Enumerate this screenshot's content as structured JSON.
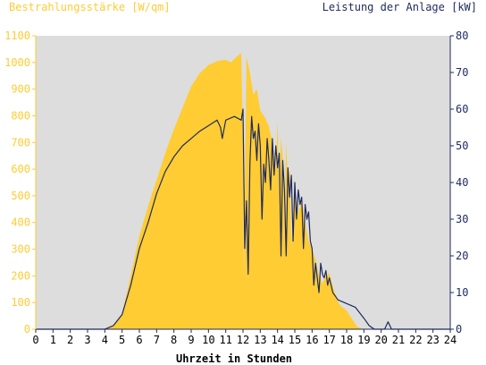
{
  "chart_data": {
    "type": "area",
    "title_left": "Bestrahlungsstärke [W/qm]",
    "title_right": "Leistung der Anlage [kW]",
    "xlabel": "Uhrzeit in Stunden",
    "xlim": [
      0,
      24
    ],
    "ylim_left": [
      0,
      1100
    ],
    "ylim_right": [
      0,
      80
    ],
    "x_ticks": [
      0,
      1,
      2,
      3,
      4,
      5,
      6,
      7,
      8,
      9,
      10,
      11,
      12,
      13,
      14,
      15,
      16,
      17,
      18,
      19,
      20,
      21,
      22,
      23,
      24
    ],
    "y_left_ticks": [
      0,
      100,
      200,
      300,
      400,
      500,
      600,
      700,
      800,
      900,
      1000,
      1100
    ],
    "y_right_ticks": [
      0,
      10,
      20,
      30,
      40,
      50,
      60,
      70,
      80
    ],
    "grid": false,
    "colors": {
      "plot_background": "#dddddd",
      "irradiance": "#ffcc33",
      "power": "#1f2a5c",
      "left_axis_text": "#ffcc33",
      "right_axis_text": "#1f2a5c"
    },
    "series": [
      {
        "name": "Bestrahlungsstärke [W/qm]",
        "axis": "left",
        "kind": "area",
        "x": [
          4.0,
          4.5,
          5.0,
          5.5,
          6.0,
          6.5,
          7.0,
          7.5,
          8.0,
          8.5,
          9.0,
          9.5,
          10.0,
          10.5,
          11.0,
          11.3,
          11.6,
          11.9,
          12.0,
          12.05,
          12.1,
          12.2,
          12.35,
          12.5,
          12.6,
          12.8,
          13.0,
          13.3,
          13.5,
          13.7,
          13.9,
          14.0,
          14.1,
          14.2,
          14.3,
          14.4,
          14.5,
          14.6,
          14.7,
          14.8,
          15.0,
          15.2,
          15.4,
          15.6,
          15.8,
          16.0,
          16.2,
          16.4,
          16.6,
          16.8,
          17.0,
          17.2,
          17.4,
          17.6,
          17.8,
          18.0,
          18.3,
          18.6,
          19.0,
          19.3,
          19.6,
          20.0
        ],
        "y": [
          0,
          15,
          60,
          200,
          350,
          460,
          560,
          660,
          750,
          830,
          910,
          960,
          990,
          1005,
          1010,
          1000,
          1020,
          1035,
          700,
          180,
          450,
          1020,
          980,
          920,
          880,
          900,
          820,
          790,
          760,
          700,
          600,
          780,
          500,
          720,
          650,
          400,
          700,
          560,
          600,
          320,
          520,
          440,
          480,
          400,
          330,
          300,
          260,
          200,
          170,
          200,
          210,
          160,
          120,
          90,
          80,
          70,
          40,
          10,
          0,
          0,
          0,
          0
        ]
      },
      {
        "name": "Leistung der Anlage [kW]",
        "axis": "right",
        "kind": "line",
        "x": [
          0,
          4.0,
          4.5,
          5.0,
          5.5,
          6.0,
          6.5,
          7.0,
          7.5,
          8.0,
          8.5,
          9.0,
          9.5,
          10.0,
          10.5,
          10.7,
          10.8,
          11.0,
          11.5,
          11.9,
          12.0,
          12.1,
          12.2,
          12.3,
          12.4,
          12.5,
          12.6,
          12.7,
          12.8,
          12.9,
          13.0,
          13.1,
          13.2,
          13.3,
          13.4,
          13.5,
          13.6,
          13.7,
          13.8,
          13.9,
          14.0,
          14.1,
          14.2,
          14.3,
          14.4,
          14.5,
          14.6,
          14.7,
          14.8,
          14.9,
          15.0,
          15.1,
          15.2,
          15.3,
          15.4,
          15.5,
          15.6,
          15.7,
          15.8,
          15.9,
          16.0,
          16.1,
          16.2,
          16.3,
          16.4,
          16.5,
          16.6,
          16.7,
          16.8,
          16.9,
          17.0,
          17.1,
          17.2,
          17.5,
          18.0,
          18.5,
          19.0,
          19.3,
          19.6,
          20.0,
          20.2,
          20.4,
          20.6,
          21.0,
          24.0
        ],
        "y": [
          0,
          0,
          1,
          4,
          12,
          22,
          29,
          37,
          43,
          47,
          50,
          52,
          54,
          55.5,
          57,
          55,
          52,
          57,
          58,
          57,
          60,
          22,
          35,
          15,
          45,
          58,
          52,
          54,
          46,
          56,
          50,
          30,
          45,
          40,
          52,
          46,
          38,
          52,
          42,
          50,
          44,
          48,
          20,
          46,
          38,
          20,
          44,
          36,
          42,
          24,
          40,
          30,
          38,
          34,
          36,
          22,
          34,
          30,
          32,
          24,
          22,
          12,
          18,
          14,
          10,
          18,
          15,
          14,
          16,
          12,
          14,
          12,
          10,
          8,
          7,
          6,
          3,
          1,
          0,
          0,
          0,
          2,
          0,
          0,
          0
        ]
      }
    ]
  }
}
